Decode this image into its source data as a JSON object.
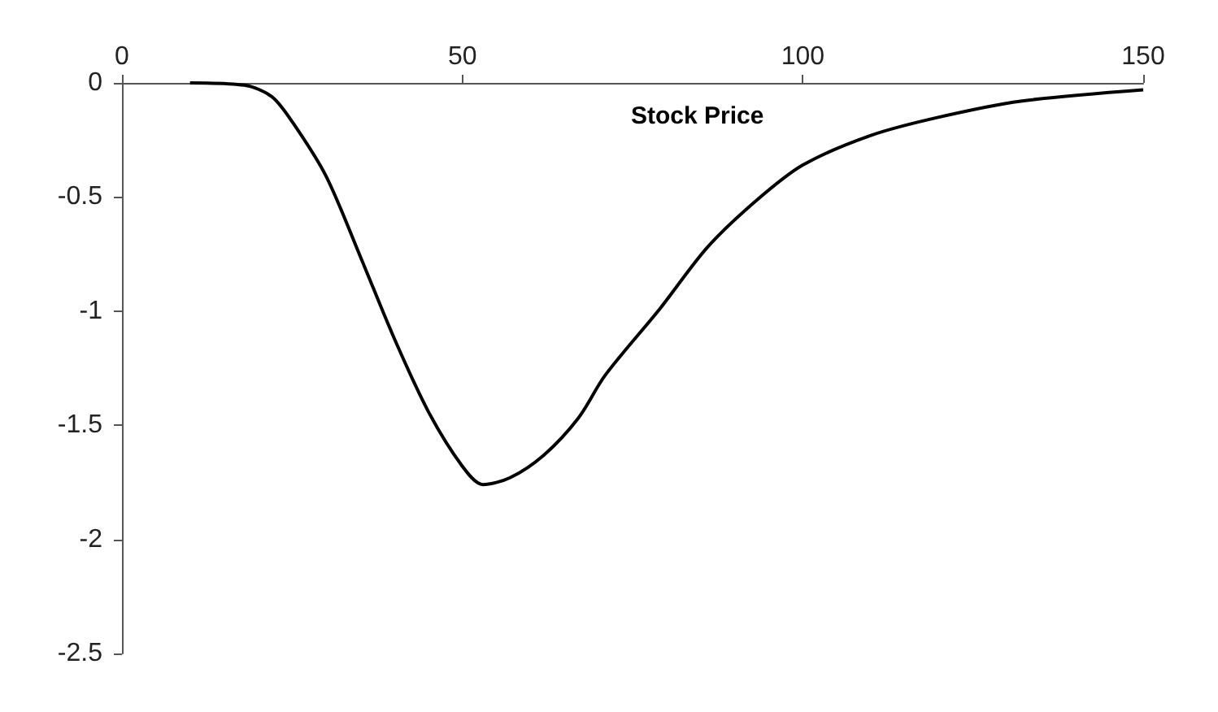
{
  "chart_data": {
    "type": "line",
    "xlabel": "Stock Price",
    "x": [
      10,
      18,
      22,
      25,
      30,
      35,
      40,
      45,
      50,
      53,
      57,
      62,
      67,
      71,
      79,
      86,
      93,
      100,
      110,
      120,
      132,
      150
    ],
    "series": [
      {
        "color": "#000000",
        "values": [
          0,
          -0.01,
          -0.06,
          -0.17,
          -0.41,
          -0.76,
          -1.12,
          -1.44,
          -1.68,
          -1.76,
          -1.73,
          -1.63,
          -1.47,
          -1.28,
          -0.99,
          -0.72,
          -0.52,
          -0.36,
          -0.23,
          -0.15,
          -0.08,
          -0.03
        ]
      }
    ],
    "xlim": [
      0,
      150
    ],
    "xticks": [
      0,
      50,
      100,
      150
    ],
    "ylim": [
      -2.5,
      0
    ],
    "yticks": [
      0,
      -0.5,
      -1,
      -1.5,
      -2,
      -2.5
    ],
    "grid": false,
    "marker": "none",
    "line_style": "solid"
  }
}
